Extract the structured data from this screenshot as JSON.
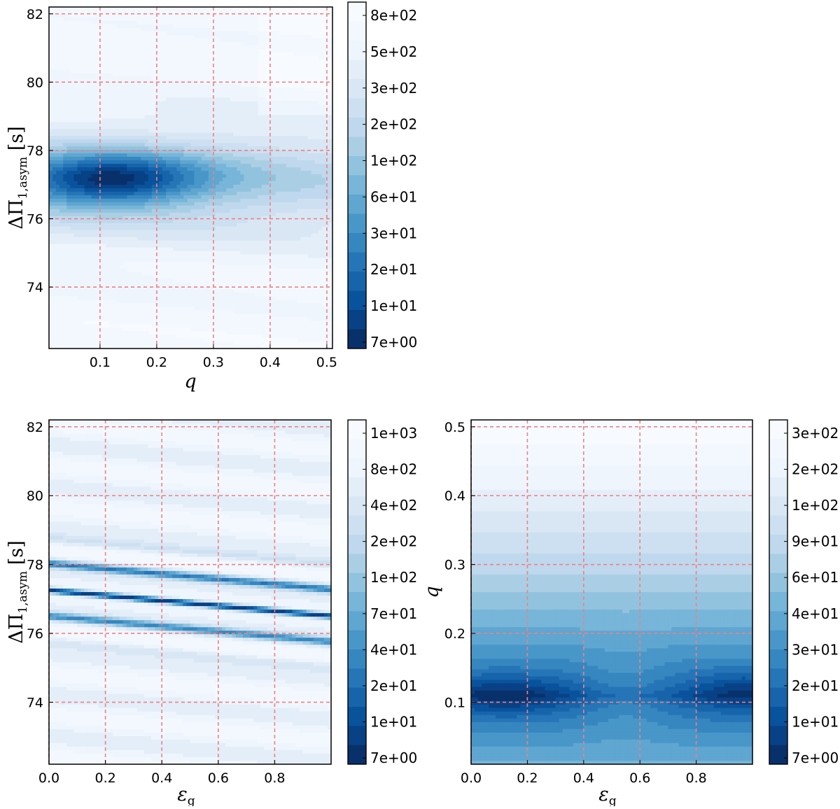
{
  "chart_data": [
    {
      "type": "heatmap",
      "panel": "top-left",
      "subtype": "filled contour",
      "xlabel": "q",
      "ylabel": "ΔΠ1,asym [s]",
      "ylabel_main": "ΔΠ",
      "ylabel_sub": "1,asym",
      "ylabel_unit": " [s]",
      "xlim": [
        0.01,
        0.51
      ],
      "ylim": [
        72.2,
        82.2
      ],
      "xticks": [
        0.1,
        0.2,
        0.3,
        0.4,
        0.5
      ],
      "xtick_labels": [
        "0.1",
        "0.2",
        "0.3",
        "0.4",
        "0.5"
      ],
      "yticks": [
        74,
        76,
        78,
        80,
        82
      ],
      "ytick_labels": [
        "74",
        "76",
        "78",
        "80",
        "82"
      ],
      "grid": true,
      "colormap": "Blues_r",
      "colorbar_labels": [
        "8e+02",
        "5e+02",
        "3e+02",
        "2e+02",
        "1e+02",
        "6e+01",
        "3e+01",
        "2e+01",
        "1e+01",
        "7e+00"
      ],
      "minimum": {
        "x": 0.11,
        "y": 77.2,
        "value": 7
      }
    },
    {
      "type": "heatmap",
      "panel": "bottom-left",
      "subtype": "filled contour",
      "xlabel": "εg",
      "xlabel_main": "ε",
      "xlabel_sub": "g",
      "ylabel": "ΔΠ1,asym [s]",
      "ylabel_main": "ΔΠ",
      "ylabel_sub": "1,asym",
      "ylabel_unit": " [s]",
      "xlim": [
        0.0,
        1.0
      ],
      "ylim": [
        72.2,
        82.2
      ],
      "xticks": [
        0.0,
        0.2,
        0.4,
        0.6,
        0.8
      ],
      "xtick_labels": [
        "0.0",
        "0.2",
        "0.4",
        "0.6",
        "0.8"
      ],
      "yticks": [
        74,
        76,
        78,
        80,
        82
      ],
      "ytick_labels": [
        "74",
        "76",
        "78",
        "80",
        "82"
      ],
      "grid": true,
      "colormap": "Blues_r",
      "colorbar_labels": [
        "1e+03",
        "8e+02",
        "4e+02",
        "2e+02",
        "1e+02",
        "7e+01",
        "4e+01",
        "2e+01",
        "1e+01",
        "7e+00"
      ],
      "minimum_bands": [
        {
          "y_at_x0": 77.25,
          "y_at_x1": 77.25,
          "slope": -0.75
        },
        {
          "y_at_x0": 78.0,
          "slope": -0.75
        },
        {
          "y_at_x0": 76.5,
          "slope": -0.75
        }
      ]
    },
    {
      "type": "heatmap",
      "panel": "bottom-right",
      "subtype": "filled contour",
      "xlabel": "εg",
      "xlabel_main": "ε",
      "xlabel_sub": "g",
      "ylabel": "q",
      "xlim": [
        0.0,
        1.0
      ],
      "ylim": [
        0.01,
        0.51
      ],
      "xticks": [
        0.0,
        0.2,
        0.4,
        0.6,
        0.8
      ],
      "xtick_labels": [
        "0.0",
        "0.2",
        "0.4",
        "0.6",
        "0.8"
      ],
      "yticks": [
        0.1,
        0.2,
        0.3,
        0.4,
        0.5
      ],
      "ytick_labels": [
        "0.1",
        "0.2",
        "0.3",
        "0.4",
        "0.5"
      ],
      "grid": true,
      "colormap": "Blues_r",
      "colorbar_labels": [
        "3e+02",
        "2e+02",
        "1e+02",
        "9e+01",
        "6e+01",
        "4e+01",
        "3e+01",
        "2e+01",
        "1e+01",
        "7e+00"
      ],
      "minimum_regions": [
        {
          "x": 0.12,
          "y": 0.11
        },
        {
          "x": 0.97,
          "y": 0.115
        }
      ]
    }
  ],
  "colors": {
    "cmap": [
      "#08306b",
      "#08519c",
      "#2171b5",
      "#4292c6",
      "#6baed6",
      "#9ecae1",
      "#c6dbef",
      "#dbe9f6",
      "#eff6fd",
      "#f7fbff"
    ],
    "grid": "#f08080"
  }
}
